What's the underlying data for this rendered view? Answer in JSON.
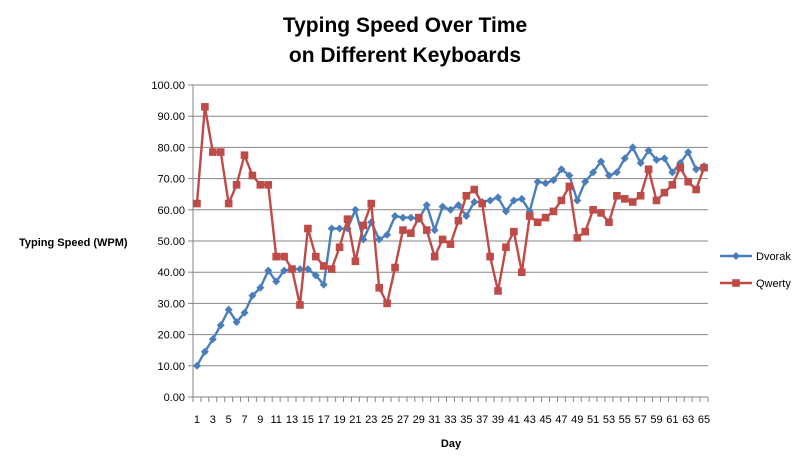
{
  "chart_data": {
    "type": "line",
    "title_line1": "Typing Speed Over Time",
    "title_line2": "on Different Keyboards",
    "xlabel": "Day",
    "ylabel": "Typing Speed (WPM)",
    "ylim": [
      0,
      100
    ],
    "y_ticks": [
      "0.00",
      "10.00",
      "20.00",
      "30.00",
      "40.00",
      "50.00",
      "60.00",
      "70.00",
      "80.00",
      "90.00",
      "100.00"
    ],
    "x_tick_labels": [
      "1",
      "3",
      "5",
      "7",
      "9",
      "11",
      "13",
      "15",
      "17",
      "19",
      "21",
      "23",
      "25",
      "27",
      "29",
      "31",
      "33",
      "35",
      "37",
      "39",
      "41",
      "43",
      "45",
      "47",
      "49",
      "51",
      "53",
      "55",
      "57",
      "59",
      "61",
      "63",
      "65"
    ],
    "grid": "horizontal",
    "legend_position": "right",
    "x": [
      1,
      2,
      3,
      4,
      5,
      6,
      7,
      8,
      9,
      10,
      11,
      12,
      13,
      14,
      15,
      16,
      17,
      18,
      19,
      20,
      21,
      22,
      23,
      24,
      25,
      26,
      27,
      28,
      29,
      30,
      31,
      32,
      33,
      34,
      35,
      36,
      37,
      38,
      39,
      40,
      41,
      42,
      43,
      44,
      45,
      46,
      47,
      48,
      49,
      50,
      51,
      52,
      53,
      54,
      55,
      56,
      57,
      58,
      59,
      60,
      61,
      62,
      63,
      64,
      65
    ],
    "series": [
      {
        "name": "Dvorak",
        "color": "#4a7ebb",
        "marker": "diamond",
        "values": [
          10.0,
          14.5,
          18.5,
          23,
          28,
          24,
          27,
          32.5,
          35,
          40.5,
          37,
          40.5,
          41,
          41,
          41,
          39,
          36,
          54,
          54,
          54,
          60,
          50.5,
          56,
          50.5,
          52,
          58,
          57.5,
          57.5,
          57,
          61.5,
          53.5,
          61,
          60,
          61.5,
          58,
          62.5,
          62.5,
          63,
          64,
          59.5,
          63,
          63.5,
          59.5,
          69,
          68.5,
          69.5,
          73,
          71,
          63,
          69,
          72,
          75.5,
          71,
          72,
          76.5,
          80,
          75,
          79,
          76,
          76.5,
          72,
          75,
          78.5,
          73,
          74
        ]
      },
      {
        "name": "Qwerty",
        "color": "#be4b48",
        "marker": "square",
        "values": [
          62,
          93,
          78.5,
          78.5,
          62,
          68,
          77.5,
          71,
          68,
          68,
          45,
          45,
          41,
          29.5,
          54,
          45,
          42,
          41,
          48,
          57,
          43.5,
          55,
          62,
          35,
          30,
          41.5,
          53.5,
          52.5,
          57.5,
          53.5,
          45,
          50.5,
          49,
          56.5,
          64.5,
          66.5,
          62,
          45,
          34,
          48,
          53,
          40,
          58,
          56,
          57.5,
          59.5,
          63,
          67.5,
          51,
          53,
          60,
          59,
          56,
          64.5,
          63.5,
          62.5,
          64.5,
          73,
          63,
          65.5,
          68,
          73.5,
          69,
          66.5,
          73.5
        ]
      }
    ]
  }
}
